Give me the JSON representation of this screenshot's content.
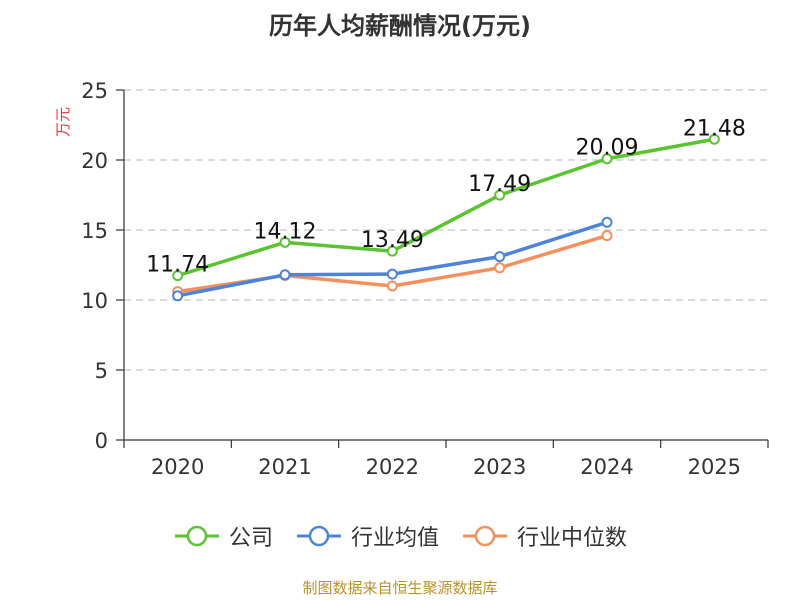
{
  "chart_data": {
    "type": "line",
    "title": "历年人均薪酬情况(万元)",
    "ylabel": "万元",
    "xlabel": "",
    "categories": [
      "2020",
      "2021",
      "2022",
      "2023",
      "2024",
      "2025"
    ],
    "ylim": [
      0,
      25
    ],
    "yticks": [
      0,
      5,
      10,
      15,
      20,
      25
    ],
    "grid": true,
    "legend_position": "bottom",
    "series": [
      {
        "name": "公司",
        "color": "#5ac330",
        "values": [
          11.74,
          14.12,
          13.49,
          17.49,
          20.09,
          21.48
        ],
        "show_labels": true
      },
      {
        "name": "行业均值",
        "color": "#4d84da",
        "values": [
          10.3,
          11.8,
          11.85,
          13.1,
          15.55,
          null
        ],
        "show_labels": false
      },
      {
        "name": "行业中位数",
        "color": "#f58f5c",
        "values": [
          10.6,
          11.75,
          11.0,
          12.3,
          14.6,
          null
        ],
        "show_labels": false
      }
    ]
  },
  "source_note": "制图数据来自恒生聚源数据库"
}
